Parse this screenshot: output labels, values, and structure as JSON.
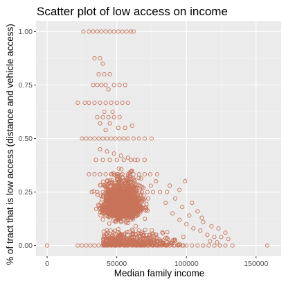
{
  "chart_data": {
    "type": "scatter",
    "title": "Scatter plot of low access on income",
    "xlabel": "Median family income",
    "ylabel": "% of tract that is low access (distance and vehicle access)",
    "xlim": [
      -8000,
      168000
    ],
    "ylim": [
      -0.05,
      1.05
    ],
    "xticks": [
      0,
      50000,
      100000,
      150000
    ],
    "xtick_labels": [
      "0",
      "50000",
      "100000",
      "150000"
    ],
    "yticks": [
      0,
      0.25,
      0.5,
      0.75,
      1
    ],
    "ytick_labels": [
      "0.00",
      "0.25",
      "0.50",
      "0.75",
      "1.00"
    ],
    "grid": true,
    "point_color": "#c8745a",
    "panel_color": "#ebebeb",
    "points": [
      [
        0,
        0
      ],
      [
        28000,
        0
      ],
      [
        31000,
        0
      ],
      [
        34000,
        0
      ],
      [
        37000,
        0
      ],
      [
        40000,
        0
      ],
      [
        43000,
        0
      ],
      [
        46000,
        0
      ],
      [
        49000,
        0
      ],
      [
        52000,
        0
      ],
      [
        55000,
        0
      ],
      [
        58000,
        0
      ],
      [
        61000,
        0
      ],
      [
        64000,
        0
      ],
      [
        67000,
        0
      ],
      [
        70000,
        0
      ],
      [
        73000,
        0
      ],
      [
        76000,
        0
      ],
      [
        79000,
        0
      ],
      [
        82000,
        0
      ],
      [
        85000,
        0
      ],
      [
        88000,
        0
      ],
      [
        91000,
        0
      ],
      [
        94000,
        0
      ],
      [
        97000,
        0
      ],
      [
        100000,
        0
      ],
      [
        104000,
        0
      ],
      [
        108000,
        0
      ],
      [
        112000,
        0
      ],
      [
        116000,
        0
      ],
      [
        120000,
        0
      ],
      [
        124000,
        0
      ],
      [
        128000,
        0
      ],
      [
        133000,
        0
      ],
      [
        158000,
        0
      ],
      [
        22000,
        0
      ],
      [
        25000,
        0
      ],
      [
        26000,
        1
      ],
      [
        30000,
        1
      ],
      [
        33000,
        1
      ],
      [
        36000,
        1
      ],
      [
        39000,
        1
      ],
      [
        42000,
        1
      ],
      [
        45000,
        1
      ],
      [
        48000,
        1
      ],
      [
        51000,
        1
      ],
      [
        54000,
        1
      ],
      [
        57000,
        1
      ],
      [
        60000,
        1
      ],
      [
        62000,
        1
      ],
      [
        34000,
        0.875
      ],
      [
        38000,
        0.875
      ],
      [
        40000,
        0.85
      ],
      [
        37000,
        0.8
      ],
      [
        41000,
        0.8
      ],
      [
        45000,
        0.8
      ],
      [
        33000,
        0.75
      ],
      [
        36000,
        0.75
      ],
      [
        39000,
        0.75
      ],
      [
        42000,
        0.75
      ],
      [
        44000,
        0.73
      ],
      [
        48000,
        0.75
      ],
      [
        52000,
        0.75
      ],
      [
        56000,
        0.75
      ],
      [
        22000,
        0.667
      ],
      [
        27000,
        0.667
      ],
      [
        30000,
        0.667
      ],
      [
        34000,
        0.667
      ],
      [
        38000,
        0.667
      ],
      [
        42000,
        0.667
      ],
      [
        46000,
        0.667
      ],
      [
        50000,
        0.667
      ],
      [
        54000,
        0.667
      ],
      [
        58000,
        0.667
      ],
      [
        36000,
        0.6
      ],
      [
        40000,
        0.6
      ],
      [
        44000,
        0.6
      ],
      [
        48000,
        0.6
      ],
      [
        52000,
        0.6
      ],
      [
        41000,
        0.625
      ],
      [
        47000,
        0.625
      ],
      [
        38000,
        0.571
      ],
      [
        45000,
        0.571
      ],
      [
        51000,
        0.55
      ],
      [
        42000,
        0.54
      ],
      [
        56000,
        0.55
      ],
      [
        61000,
        0.56
      ],
      [
        25000,
        0.5
      ],
      [
        28000,
        0.5
      ],
      [
        31000,
        0.5
      ],
      [
        34000,
        0.5
      ],
      [
        37000,
        0.5
      ],
      [
        40000,
        0.5
      ],
      [
        43000,
        0.5
      ],
      [
        46000,
        0.5
      ],
      [
        49000,
        0.5
      ],
      [
        52000,
        0.5
      ],
      [
        55000,
        0.5
      ],
      [
        58000,
        0.5
      ],
      [
        62000,
        0.5
      ],
      [
        66000,
        0.5
      ],
      [
        70000,
        0.5
      ],
      [
        75000,
        0.5
      ],
      [
        38000,
        0.45
      ],
      [
        43000,
        0.44
      ],
      [
        48000,
        0.43
      ],
      [
        53000,
        0.42
      ],
      [
        58000,
        0.41
      ],
      [
        63000,
        0.4
      ],
      [
        35000,
        0.4
      ],
      [
        40000,
        0.4
      ],
      [
        45000,
        0.4
      ],
      [
        50000,
        0.4
      ],
      [
        55000,
        0.4
      ],
      [
        60000,
        0.4
      ],
      [
        65000,
        0.4
      ],
      [
        70000,
        0.4
      ],
      [
        30000,
        0.333
      ],
      [
        34000,
        0.333
      ],
      [
        38000,
        0.333
      ],
      [
        42000,
        0.333
      ],
      [
        46000,
        0.333
      ],
      [
        50000,
        0.333
      ],
      [
        54000,
        0.333
      ],
      [
        58000,
        0.333
      ],
      [
        62000,
        0.333
      ],
      [
        66000,
        0.333
      ],
      [
        70000,
        0.333
      ],
      [
        74000,
        0.333
      ],
      [
        79000,
        0.333
      ],
      [
        32000,
        0.25
      ],
      [
        36000,
        0.25
      ],
      [
        40000,
        0.25
      ],
      [
        44000,
        0.25
      ],
      [
        48000,
        0.25
      ],
      [
        52000,
        0.25
      ],
      [
        56000,
        0.25
      ],
      [
        60000,
        0.25
      ],
      [
        64000,
        0.25
      ],
      [
        68000,
        0.25
      ],
      [
        72000,
        0.25
      ],
      [
        76000,
        0.25
      ],
      [
        81000,
        0.25
      ],
      [
        86000,
        0.25
      ],
      [
        85000,
        0.2
      ],
      [
        90000,
        0.15
      ],
      [
        95000,
        0.12
      ],
      [
        100000,
        0.1
      ],
      [
        105000,
        0.08
      ],
      [
        110000,
        0.07
      ],
      [
        115000,
        0.05
      ],
      [
        120000,
        0.04
      ],
      [
        125000,
        0.04
      ],
      [
        130000,
        0.03
      ],
      [
        92000,
        0.22
      ],
      [
        97000,
        0.18
      ],
      [
        102000,
        0.14
      ],
      [
        108000,
        0.16
      ],
      [
        112000,
        0.11
      ],
      [
        118000,
        0.09
      ],
      [
        123000,
        0.08
      ],
      [
        128000,
        0.06
      ],
      [
        99000,
        0.3
      ],
      [
        88000,
        0.28
      ],
      [
        104000,
        0.2
      ],
      [
        78000,
        0.3
      ],
      [
        95000,
        0.26
      ],
      [
        111000,
        0.13
      ],
      [
        117000,
        0.02
      ],
      [
        122000,
        0.015
      ]
    ],
    "cluster": {
      "center": [
        54000,
        0.18
      ],
      "spread": [
        11000,
        0.12
      ],
      "count": 1700
    },
    "low_band": {
      "x_range": [
        40000,
        100000
      ],
      "y_range": [
        0,
        0.08
      ],
      "count": 450
    }
  }
}
